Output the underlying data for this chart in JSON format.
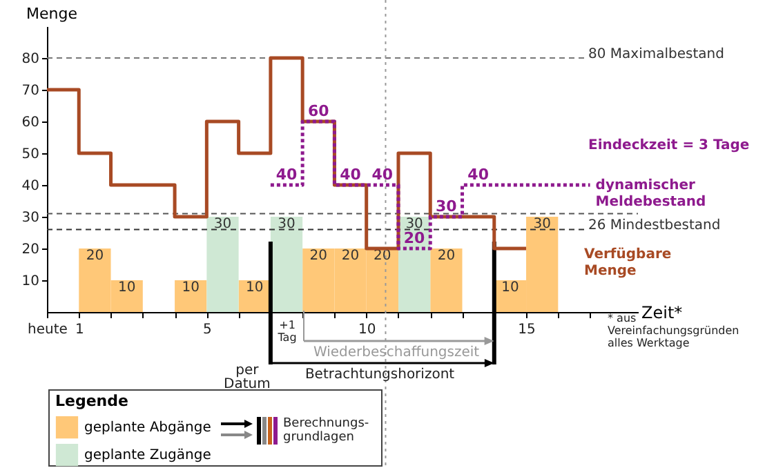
{
  "chart_data": {
    "type": "bar",
    "ylabel": "Menge",
    "xlabel": "Zeit*",
    "legend_title": "Legende",
    "legend": "bottom left",
    "xlim": [
      0,
      18.5
    ],
    "ylim": [
      0,
      90
    ],
    "xticks": [
      {
        "value": 0,
        "label": "heute"
      },
      1,
      {
        "value": 2,
        "label": null
      },
      {
        "value": 3,
        "label": null
      },
      {
        "value": 4,
        "label": null
      },
      5,
      {
        "value": 6,
        "label": null
      },
      {
        "value": 7,
        "label": null
      },
      {
        "value": 8,
        "label": null
      },
      {
        "value": 9,
        "label": null
      },
      10,
      {
        "value": 11,
        "label": null
      },
      {
        "value": 12,
        "label": null
      },
      {
        "value": 13,
        "label": null
      },
      {
        "value": 14,
        "label": null
      },
      15,
      {
        "value": 16,
        "label": null
      },
      {
        "value": 17,
        "label": null
      }
    ],
    "yticks": [
      10,
      20,
      30,
      40,
      50,
      60,
      70,
      80
    ],
    "series": [
      {
        "name": "geplante Abgänge",
        "type": "bar",
        "color": "#ffc878",
        "x": [
          1.5,
          2.5,
          4.5,
          6.5,
          8.5,
          9.5,
          10.5,
          12.5,
          14.5,
          15.5
        ],
        "values": [
          20,
          10,
          10,
          10,
          20,
          20,
          20,
          20,
          10,
          30
        ],
        "value_labels": [
          "20",
          "10",
          "10",
          "10",
          "20",
          "20",
          "20",
          "20",
          "10",
          "30"
        ]
      },
      {
        "name": "geplante Zugänge",
        "type": "bar",
        "color": "#cfe8d4",
        "x": [
          5.5,
          7.5,
          11.5
        ],
        "values": [
          30,
          30,
          30
        ],
        "value_labels": [
          "30",
          "30",
          "30"
        ]
      },
      {
        "name": "Verfügbare Menge",
        "type": "step",
        "color": "#a84a24",
        "x": [
          0,
          1,
          2,
          3,
          4,
          5,
          6,
          7,
          8,
          9,
          10,
          11,
          12,
          13,
          14,
          15
        ],
        "values": [
          70,
          50,
          40,
          40,
          30,
          60,
          50,
          80,
          60,
          40,
          20,
          50,
          30,
          30,
          20,
          20
        ]
      },
      {
        "name": "dynamischer Meldebestand",
        "type": "step",
        "color": "#8e1a8e",
        "line_style": "dotted",
        "x": [
          7,
          8,
          9,
          10,
          11,
          12,
          13,
          17
        ],
        "values": [
          40,
          60,
          40,
          40,
          20,
          30,
          40,
          40
        ],
        "value_labels": [
          "40",
          "60",
          "40",
          "40",
          "20",
          "30",
          "40",
          null
        ]
      }
    ],
    "ref_lines": [
      {
        "axis": "y",
        "value": 80,
        "label": "80  Maximalbestand",
        "color": "#777777",
        "line_style": "dashed"
      },
      {
        "axis": "y",
        "value": 26,
        "label": "26  Mindestbestand",
        "color": "#333333",
        "line_style": "dashed"
      },
      {
        "axis": "y",
        "value": 31,
        "color": "#555555",
        "line_style": "dashed"
      },
      {
        "axis": "x",
        "value": 10.6,
        "color": "#999999",
        "line_style": "dotted"
      },
      {
        "axis": "x",
        "value": 7,
        "label": "per Datum",
        "color": "#000000",
        "line_style": "solid"
      },
      {
        "axis": "x",
        "value": 14,
        "color": "#000000",
        "line_style": "solid"
      }
    ],
    "annotations": [
      "Eindeckzeit = 3 Tage",
      "* aus Vereinfachungsgründen alles Werktage",
      "Berechnungs-grundlagen",
      "+1 Tag",
      "Wiederbeschaffungszeit",
      "Betrachtungshorizont"
    ]
  }
}
